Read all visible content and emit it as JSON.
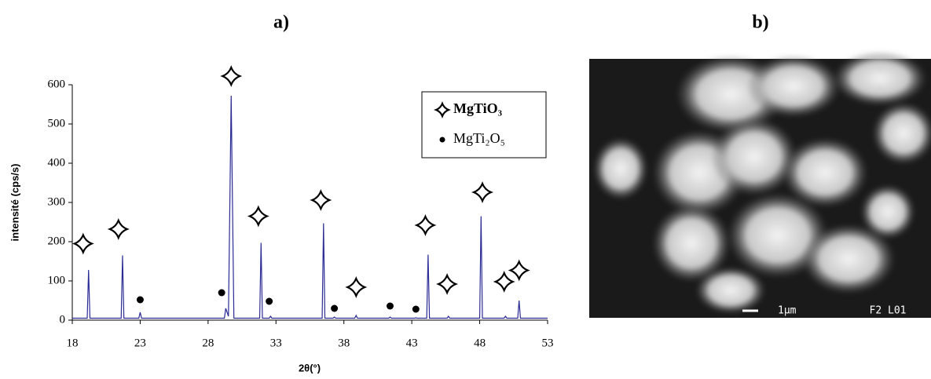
{
  "chart_data": {
    "type": "line",
    "title": "a)",
    "x_label": "2θ(°)",
    "y_label": "intensité (cps/s)",
    "xlim": [
      18,
      53
    ],
    "xticks": [
      18,
      23,
      28,
      33,
      38,
      43,
      48,
      53
    ],
    "ylim": [
      0,
      600
    ],
    "yticks": [
      0,
      100,
      200,
      300,
      400,
      500,
      600
    ],
    "grid": false,
    "legend": "upper right",
    "series": [
      {
        "color": "#2b2b96",
        "x": [
          18,
          19.1,
          19.2,
          19.3,
          21.6,
          21.7,
          21.8,
          22.9,
          23.0,
          23.1,
          29.2,
          29.3,
          29.5,
          29.7,
          29.9,
          31.8,
          31.9,
          32.0,
          32.5,
          32.6,
          32.7,
          36.4,
          36.5,
          36.6,
          37.2,
          37.3,
          37.4,
          38.8,
          38.9,
          39.0,
          41.3,
          41.4,
          41.5,
          43.2,
          43.3,
          43.4,
          44.1,
          44.2,
          44.3,
          45.6,
          45.7,
          45.8,
          48.0,
          48.1,
          48.2,
          49.8,
          49.9,
          50.0,
          50.8,
          50.9,
          51.0,
          53
        ],
        "values": [
          5,
          5,
          128,
          5,
          5,
          165,
          5,
          5,
          20,
          5,
          5,
          30,
          10,
          572,
          5,
          5,
          197,
          5,
          5,
          10,
          5,
          5,
          247,
          5,
          5,
          8,
          5,
          5,
          12,
          5,
          5,
          8,
          5,
          5,
          6,
          5,
          5,
          167,
          5,
          5,
          10,
          5,
          5,
          265,
          5,
          5,
          10,
          5,
          5,
          50,
          5,
          5
        ]
      },
      {
        "name": "MgTiO₃",
        "marker": "star",
        "color": "#000000",
        "x": [
          18.8,
          21.4,
          29.7,
          31.7,
          36.3,
          38.9,
          44.0,
          45.6,
          48.2,
          49.8,
          50.9
        ],
        "values": [
          195,
          232,
          622,
          265,
          306,
          84,
          242,
          92,
          326,
          98,
          127
        ]
      },
      {
        "name": "MgTi₂O₅",
        "marker": "dot",
        "color": "#000000",
        "x": [
          23.0,
          29.0,
          32.5,
          37.3,
          41.4,
          43.3
        ],
        "values": [
          52,
          70,
          48,
          30,
          36,
          28
        ]
      }
    ]
  },
  "image_panel": {
    "label": "b)",
    "scale_bar": "1μm",
    "code": "F2 L01"
  }
}
